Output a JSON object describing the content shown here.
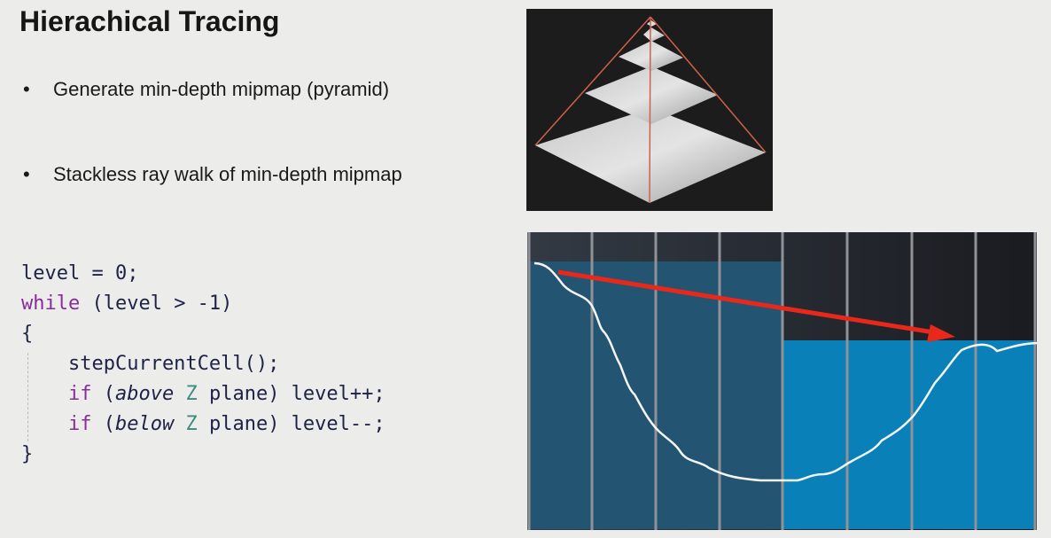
{
  "slide": {
    "title": "Hierachical Tracing",
    "bullets": [
      "Generate min-depth mipmap (pyramid)",
      "Stackless ray walk of min-depth mipmap"
    ],
    "bullet_symbol": "•",
    "code": {
      "line1": "level = 0;",
      "line2_kw": "while",
      "line2_rest": " (level > -1)",
      "line3": "{",
      "line4": "    stepCurrentCell();",
      "line5_kw": "    if",
      "line5_a": " (",
      "line5_it": "above",
      "line5_z": " Z",
      "line5_rest": " plane) level++;",
      "line6_kw": "    if",
      "line6_a": " (",
      "line6_it": "below",
      "line6_z": " Z",
      "line6_rest": " plane) level--;",
      "line7": "}"
    }
  },
  "colors": {
    "ray_arrow": "#e8281a",
    "pyramid_edges": "#d0604a",
    "coarse_cell": "#235572",
    "fine_cell": "#0a80b8",
    "background_dark": "#2a2d35"
  }
}
